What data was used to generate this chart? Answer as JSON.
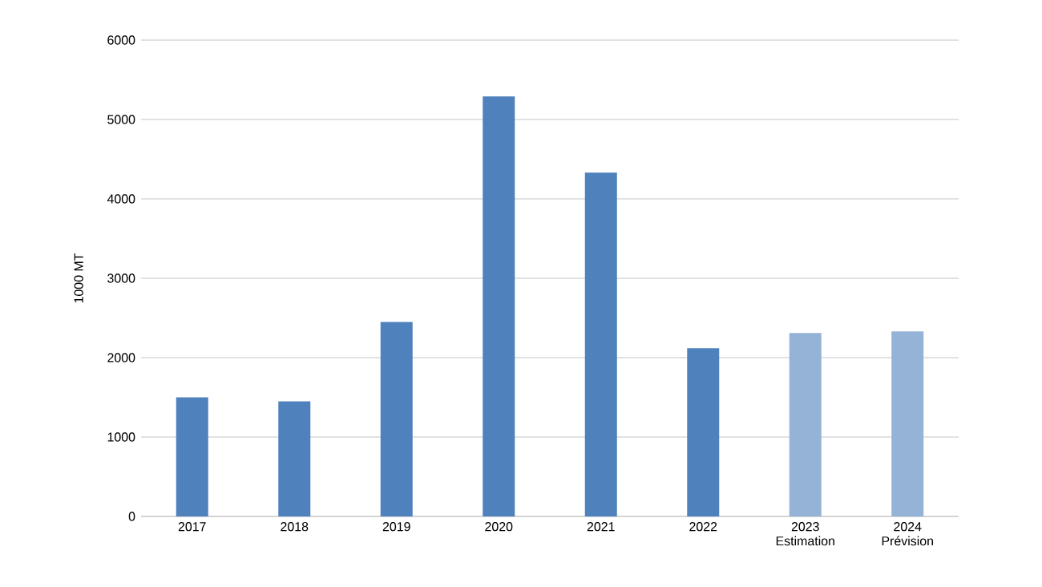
{
  "chart_data": {
    "type": "bar",
    "ylabel": "1000 MT",
    "categories": [
      "2017",
      "2018",
      "2019",
      "2020",
      "2021",
      "2022",
      "2023 Estimation",
      "2024 Prévision"
    ],
    "values": [
      1500,
      1450,
      2450,
      5290,
      4330,
      2120,
      2310,
      2330
    ],
    "colors": [
      "#4f81bd",
      "#4f81bd",
      "#4f81bd",
      "#4f81bd",
      "#4f81bd",
      "#4f81bd",
      "#95b3d7",
      "#95b3d7"
    ],
    "ylim": [
      0,
      6000
    ],
    "yticks": [
      0,
      1000,
      2000,
      3000,
      4000,
      5000,
      6000
    ],
    "grid": "y"
  }
}
